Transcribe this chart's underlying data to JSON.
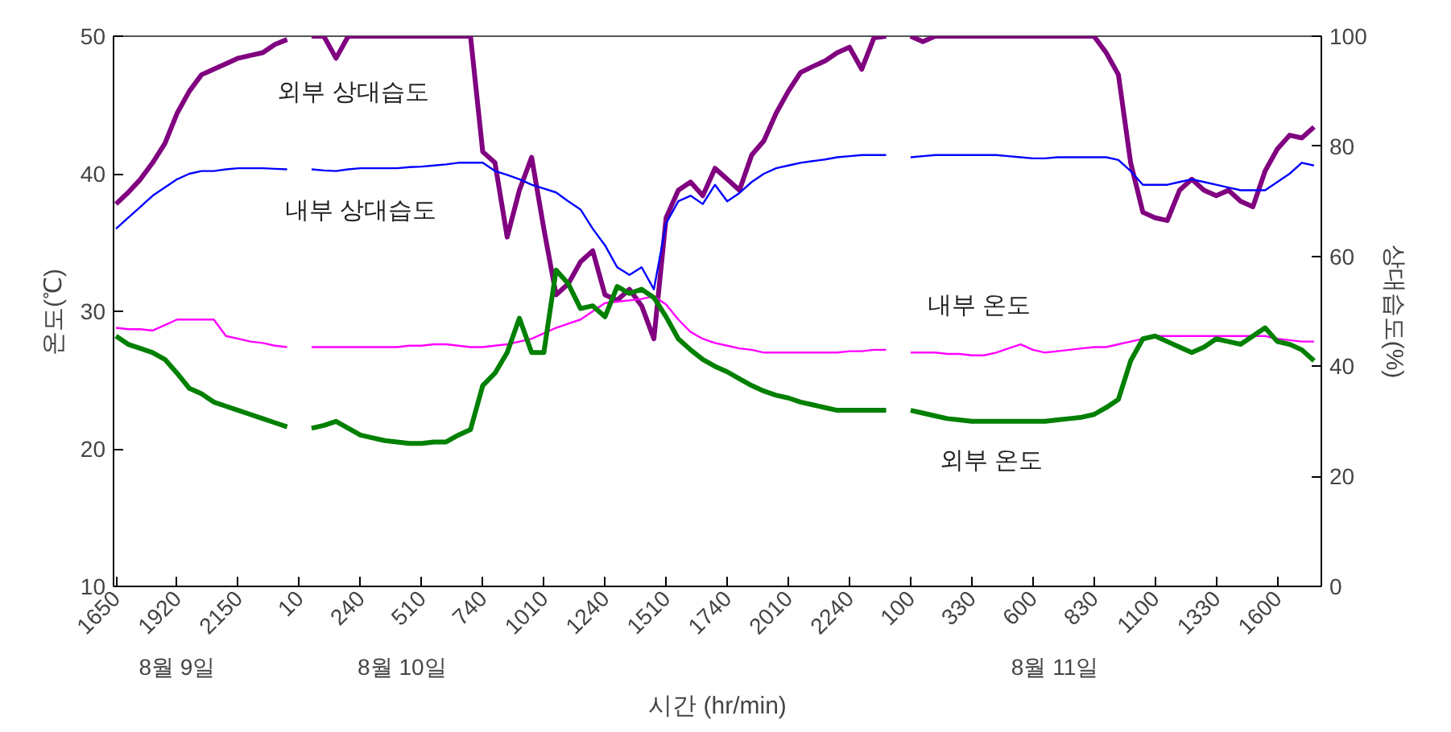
{
  "chart_data": {
    "type": "line",
    "xlabel": "시간 (hr/min)",
    "ylabel": "온도(℃)",
    "y2label": "상대습도(%)",
    "categories": [
      "1650",
      null,
      null,
      null,
      null,
      "1920",
      null,
      null,
      null,
      null,
      "2150",
      null,
      null,
      null,
      null,
      "10",
      null,
      null,
      null,
      null,
      "240",
      null,
      null,
      null,
      null,
      "510",
      null,
      null,
      null,
      null,
      "740",
      null,
      null,
      null,
      null,
      "1010",
      null,
      null,
      null,
      null,
      "1240",
      null,
      null,
      null,
      null,
      "1510",
      null,
      null,
      null,
      null,
      "1740",
      null,
      null,
      null,
      null,
      "2010",
      null,
      null,
      null,
      null,
      "2240",
      null,
      null,
      null,
      null,
      "100",
      null,
      null,
      null,
      null,
      "330",
      null,
      null,
      null,
      null,
      "600",
      null,
      null,
      null,
      null,
      "830",
      null,
      null,
      null,
      null,
      "1100",
      null,
      null,
      null,
      null,
      "1330",
      null,
      null,
      null,
      null,
      "1600",
      null,
      null,
      null
    ],
    "ylim": [
      10,
      50
    ],
    "y2lim": [
      0,
      100
    ],
    "yticks": [
      10,
      20,
      30,
      40,
      50
    ],
    "y2ticks": [
      0,
      20,
      40,
      60,
      80,
      100
    ],
    "grid": false,
    "marker": "none",
    "line_style": "solid",
    "annotations": [
      "8월 9일",
      "8월 10일",
      "8월 11일"
    ],
    "series": [
      {
        "name": "외부 상대습도",
        "color": "#800080",
        "axis": "y2",
        "values": [
          69.5,
          71.6,
          74,
          77,
          80.5,
          86,
          90,
          93,
          94,
          95,
          96,
          96.5,
          97,
          98.5,
          99.4,
          null,
          100,
          100,
          96,
          100,
          100,
          100,
          100,
          100,
          100,
          100,
          100,
          100,
          100,
          100,
          79,
          77,
          63.5,
          72,
          78,
          65,
          53,
          55,
          59,
          61,
          53,
          52,
          54,
          51,
          45,
          67,
          72,
          73.5,
          71,
          76,
          74,
          72,
          78.4,
          81,
          86,
          90,
          93.4,
          94.5,
          95.5,
          97,
          98,
          94,
          99.7,
          100,
          null,
          100,
          99,
          100,
          100,
          100,
          100,
          100,
          100,
          100,
          100,
          100,
          100,
          100,
          100,
          100,
          100,
          97,
          93,
          77,
          68,
          67,
          66.5,
          72,
          74,
          72,
          71,
          72,
          70,
          69,
          75.5,
          79.5,
          82,
          81.5,
          83.5
        ]
      },
      {
        "name": "내부 상대습도",
        "color": "#0000ff",
        "axis": "y2",
        "values": [
          65,
          67,
          69,
          71,
          72.5,
          74,
          75,
          75.5,
          75.5,
          75.8,
          76,
          76,
          76,
          75.9,
          75.8,
          null,
          75.8,
          75.6,
          75.5,
          75.8,
          76,
          76,
          76,
          76,
          76.2,
          76.3,
          76.5,
          76.7,
          77,
          77,
          77,
          75.5,
          74.8,
          74,
          73,
          72.3,
          71.6,
          70,
          68.5,
          65,
          62,
          58,
          56.6,
          58,
          54,
          66,
          70,
          71,
          69.5,
          73,
          70,
          71.5,
          73.5,
          75,
          76,
          76.5,
          77,
          77.3,
          77.6,
          78,
          78.2,
          78.4,
          78.4,
          78.4,
          null,
          78,
          78.2,
          78.4,
          78.4,
          78.4,
          78.4,
          78.4,
          78.4,
          78.2,
          78,
          77.8,
          77.8,
          78,
          78,
          78,
          78,
          78,
          77.5,
          75.5,
          73,
          73,
          73,
          73.5,
          74,
          73.5,
          73,
          72.5,
          72,
          72,
          72,
          73.5,
          75,
          77,
          76.5
        ]
      },
      {
        "name": "내부 온도",
        "color": "#ff00ff",
        "values": [
          28.8,
          28.7,
          28.7,
          28.6,
          29,
          29.4,
          29.4,
          29.4,
          29.4,
          28.2,
          28,
          27.8,
          27.7,
          27.5,
          27.4,
          null,
          27.4,
          27.4,
          27.4,
          27.4,
          27.4,
          27.4,
          27.4,
          27.4,
          27.5,
          27.5,
          27.6,
          27.6,
          27.5,
          27.4,
          27.4,
          27.5,
          27.6,
          27.8,
          28,
          28.4,
          28.8,
          29.1,
          29.4,
          30,
          30.6,
          30.7,
          30.8,
          30.9,
          31.1,
          30.5,
          29.4,
          28.5,
          28,
          27.7,
          27.5,
          27.3,
          27.2,
          27,
          27,
          27,
          27,
          27,
          27,
          27,
          27.1,
          27.1,
          27.2,
          27.2,
          null,
          27,
          27,
          27,
          26.9,
          26.9,
          26.8,
          26.8,
          27,
          27.3,
          27.6,
          27.2,
          27,
          27.1,
          27.2,
          27.3,
          27.4,
          27.4,
          27.6,
          27.8,
          28,
          28.2,
          28.2,
          28.2,
          28.2,
          28.2,
          28.2,
          28.2,
          28.2,
          28.2,
          28.2,
          28,
          27.9,
          27.8,
          27.8
        ]
      },
      {
        "name": "외부 온도",
        "color": "#008000",
        "values": [
          28.2,
          27.6,
          27.3,
          27,
          26.5,
          25.5,
          24.4,
          24,
          23.4,
          23.1,
          22.8,
          22.5,
          22.2,
          21.9,
          21.6,
          null,
          21.5,
          21.7,
          22,
          21.5,
          21,
          20.8,
          20.6,
          20.5,
          20.4,
          20.4,
          20.5,
          20.5,
          21,
          21.4,
          24.6,
          25.5,
          27,
          29.5,
          27,
          27,
          33,
          32,
          30.2,
          30.4,
          29.6,
          31.8,
          31.3,
          31.6,
          31,
          29.6,
          28,
          27.2,
          26.5,
          26,
          25.6,
          25.1,
          24.6,
          24.2,
          23.9,
          23.7,
          23.4,
          23.2,
          23,
          22.8,
          22.8,
          22.8,
          22.8,
          22.8,
          null,
          22.8,
          22.6,
          22.4,
          22.2,
          22.1,
          22,
          22,
          22,
          22,
          22,
          22,
          22,
          22.1,
          22.2,
          22.3,
          22.5,
          23,
          23.6,
          26.4,
          28,
          28.2,
          27.8,
          27.4,
          27,
          27.4,
          28,
          27.8,
          27.6,
          28.2,
          28.8,
          27.8,
          27.6,
          27.2,
          26.4
        ]
      }
    ]
  }
}
